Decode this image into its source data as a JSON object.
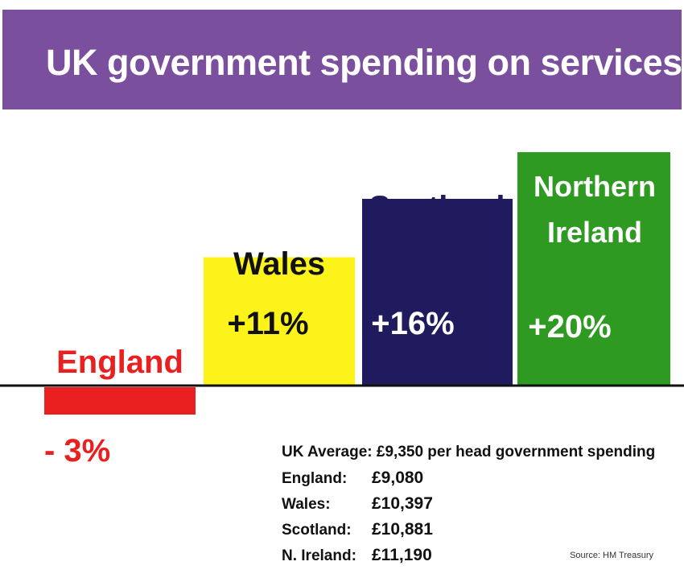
{
  "title": "UK government spending on services",
  "colors": {
    "banner": "#7a4f9e",
    "england": "#e9201f",
    "wales": "#fbf31a",
    "scotland": "#201b5e",
    "northern_ireland": "#2f9a22"
  },
  "chart_data": {
    "type": "bar",
    "categories": [
      "England",
      "Wales",
      "Scotland",
      "Northern Ireland"
    ],
    "values": [
      -3,
      11,
      16,
      20
    ],
    "value_labels": [
      "- 3%",
      "+11%",
      "+16%",
      "+20%"
    ],
    "unit": "%"
  },
  "stats": {
    "average": "UK Average: £9,350 per head government spending",
    "rows": [
      {
        "label": "England:",
        "value": "£9,080"
      },
      {
        "label": "Wales:",
        "value": "£10,397"
      },
      {
        "label": "Scotland:",
        "value": "£10,881"
      },
      {
        "label": "N. Ireland:",
        "value": "£11,190"
      }
    ]
  },
  "source": "Source: HM Treasury"
}
